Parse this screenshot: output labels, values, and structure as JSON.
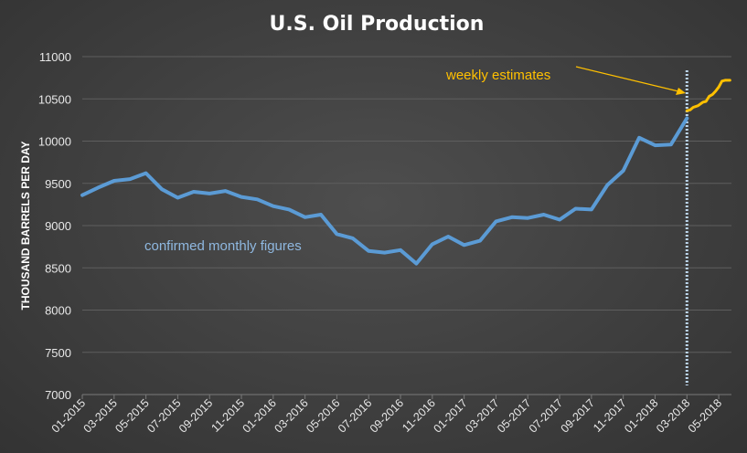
{
  "colors": {
    "monthly": "#5b9bd5",
    "weekly": "#ffc000",
    "divider": "#bdd7ee",
    "grid": "#5e5e5e",
    "text": "#e8e8e8"
  },
  "chart_data": {
    "type": "line",
    "title": "U.S. Oil Production",
    "xlabel": "",
    "ylabel": "THOUSAND BARRELS PER DAY",
    "ylim": [
      7000,
      11000
    ],
    "yticks": [
      7000,
      7500,
      8000,
      8500,
      9000,
      9500,
      10000,
      10500,
      11000
    ],
    "grid": true,
    "legend": "none",
    "xlim": [
      0,
      40.8
    ],
    "x_tick_labels": [
      {
        "x": 0,
        "label": "01-2015"
      },
      {
        "x": 2,
        "label": "03-2015"
      },
      {
        "x": 4,
        "label": "05-2015"
      },
      {
        "x": 6,
        "label": "07-2015"
      },
      {
        "x": 8,
        "label": "09-2015"
      },
      {
        "x": 10,
        "label": "11-2015"
      },
      {
        "x": 12,
        "label": "01-2016"
      },
      {
        "x": 14,
        "label": "03-2016"
      },
      {
        "x": 16,
        "label": "05-2016"
      },
      {
        "x": 18,
        "label": "07-2016"
      },
      {
        "x": 20,
        "label": "09-2016"
      },
      {
        "x": 22,
        "label": "11-2016"
      },
      {
        "x": 24,
        "label": "01-2017"
      },
      {
        "x": 26,
        "label": "03-2017"
      },
      {
        "x": 28,
        "label": "05-2017"
      },
      {
        "x": 30,
        "label": "07-2017"
      },
      {
        "x": 32,
        "label": "09-2017"
      },
      {
        "x": 34,
        "label": "11-2017"
      },
      {
        "x": 36,
        "label": "01-2018"
      },
      {
        "x": 38,
        "label": "03-2018"
      },
      {
        "x": 40,
        "label": "05-2018"
      }
    ],
    "series": [
      {
        "key": "monthly",
        "values": [
          [
            0,
            9360
          ],
          [
            1,
            9450
          ],
          [
            2,
            9530
          ],
          [
            3,
            9550
          ],
          [
            4,
            9620
          ],
          [
            5,
            9430
          ],
          [
            6,
            9330
          ],
          [
            7,
            9400
          ],
          [
            8,
            9380
          ],
          [
            9,
            9410
          ],
          [
            10,
            9340
          ],
          [
            11,
            9310
          ],
          [
            12,
            9230
          ],
          [
            13,
            9190
          ],
          [
            14,
            9100
          ],
          [
            15,
            9130
          ],
          [
            16,
            8900
          ],
          [
            17,
            8850
          ],
          [
            18,
            8700
          ],
          [
            19,
            8680
          ],
          [
            20,
            8710
          ],
          [
            21,
            8550
          ],
          [
            22,
            8780
          ],
          [
            23,
            8870
          ],
          [
            24,
            8770
          ],
          [
            25,
            8820
          ],
          [
            26,
            9050
          ],
          [
            27,
            9100
          ],
          [
            28,
            9090
          ],
          [
            29,
            9130
          ],
          [
            30,
            9070
          ],
          [
            31,
            9200
          ],
          [
            32,
            9190
          ],
          [
            33,
            9480
          ],
          [
            34,
            9650
          ],
          [
            35,
            10040
          ],
          [
            36,
            9950
          ],
          [
            37,
            9960
          ],
          [
            38,
            10270
          ]
        ]
      },
      {
        "key": "weekly",
        "values": [
          [
            38.0,
            10360
          ],
          [
            38.2,
            10370
          ],
          [
            38.4,
            10400
          ],
          [
            38.7,
            10420
          ],
          [
            39.0,
            10460
          ],
          [
            39.2,
            10470
          ],
          [
            39.4,
            10530
          ],
          [
            39.6,
            10550
          ],
          [
            39.8,
            10590
          ],
          [
            40.0,
            10640
          ],
          [
            40.2,
            10710
          ],
          [
            40.4,
            10720
          ],
          [
            40.7,
            10720
          ]
        ]
      }
    ],
    "divider_x": 38,
    "annotations": {
      "monthly_label": "confirmed monthly figures",
      "weekly_label": "weekly estimates"
    }
  }
}
